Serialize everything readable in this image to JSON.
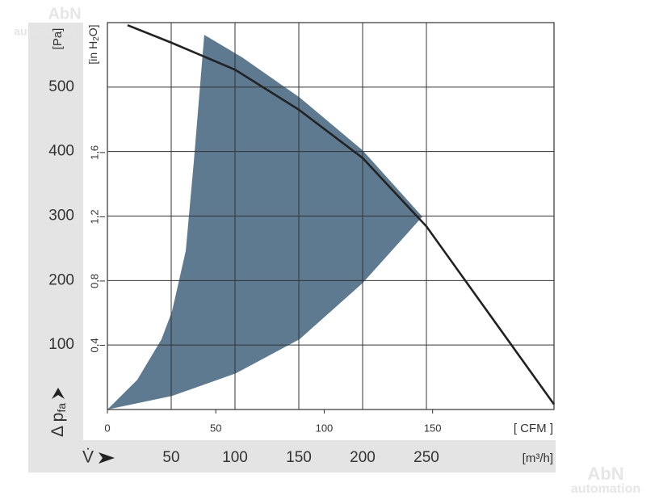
{
  "chart_data": {
    "type": "line",
    "y_label": {
      "symbol": "Δ p",
      "subscript": "fa"
    },
    "y_unit": "[Pa]",
    "y2_unit": {
      "before": "[in H",
      "subscript": "2",
      "after": "O]"
    },
    "x_label": "V̇",
    "x_unit": "[m³/h]",
    "x2_unit": "[ CFM ]",
    "watermark": {
      "line1": "AbN",
      "line2": "automation"
    },
    "xlim": [
      0,
      350
    ],
    "xticks": [
      50,
      100,
      150,
      200,
      250
    ],
    "x2lim": [
      0,
      206
    ],
    "x2ticks": [
      0,
      50,
      100,
      150
    ],
    "ylim": [
      0,
      600
    ],
    "yticks": [
      100,
      200,
      300,
      400,
      500
    ],
    "y2lim": [
      0,
      2.409
    ],
    "y2ticks": [
      {
        "value": 0.4,
        "label": "0,4"
      },
      {
        "value": 0.8,
        "label": "0,8"
      },
      {
        "value": 1.2,
        "label": "1,2"
      },
      {
        "value": 1.6,
        "label": "1,6"
      }
    ],
    "grid": true,
    "series": [
      {
        "type": "area",
        "color": "#5e7a91",
        "x": [
          0,
          23.4,
          42.4,
          50.6,
          61.4,
          67.7,
          75.9,
          105.7,
          150.6,
          200,
          246.8,
          200,
          150.6,
          100.6,
          50.6
        ],
        "values": [
          0,
          46,
          109,
          152,
          246,
          384,
          581,
          546,
          484,
          402,
          299,
          196,
          109,
          56,
          21
        ]
      },
      {
        "type": "line",
        "color": "#222222",
        "x": [
          15.8,
          50,
          100,
          150,
          200,
          250,
          300,
          350
        ],
        "values": [
          596,
          569,
          527,
          465,
          390,
          284,
          146,
          8
        ]
      }
    ]
  }
}
